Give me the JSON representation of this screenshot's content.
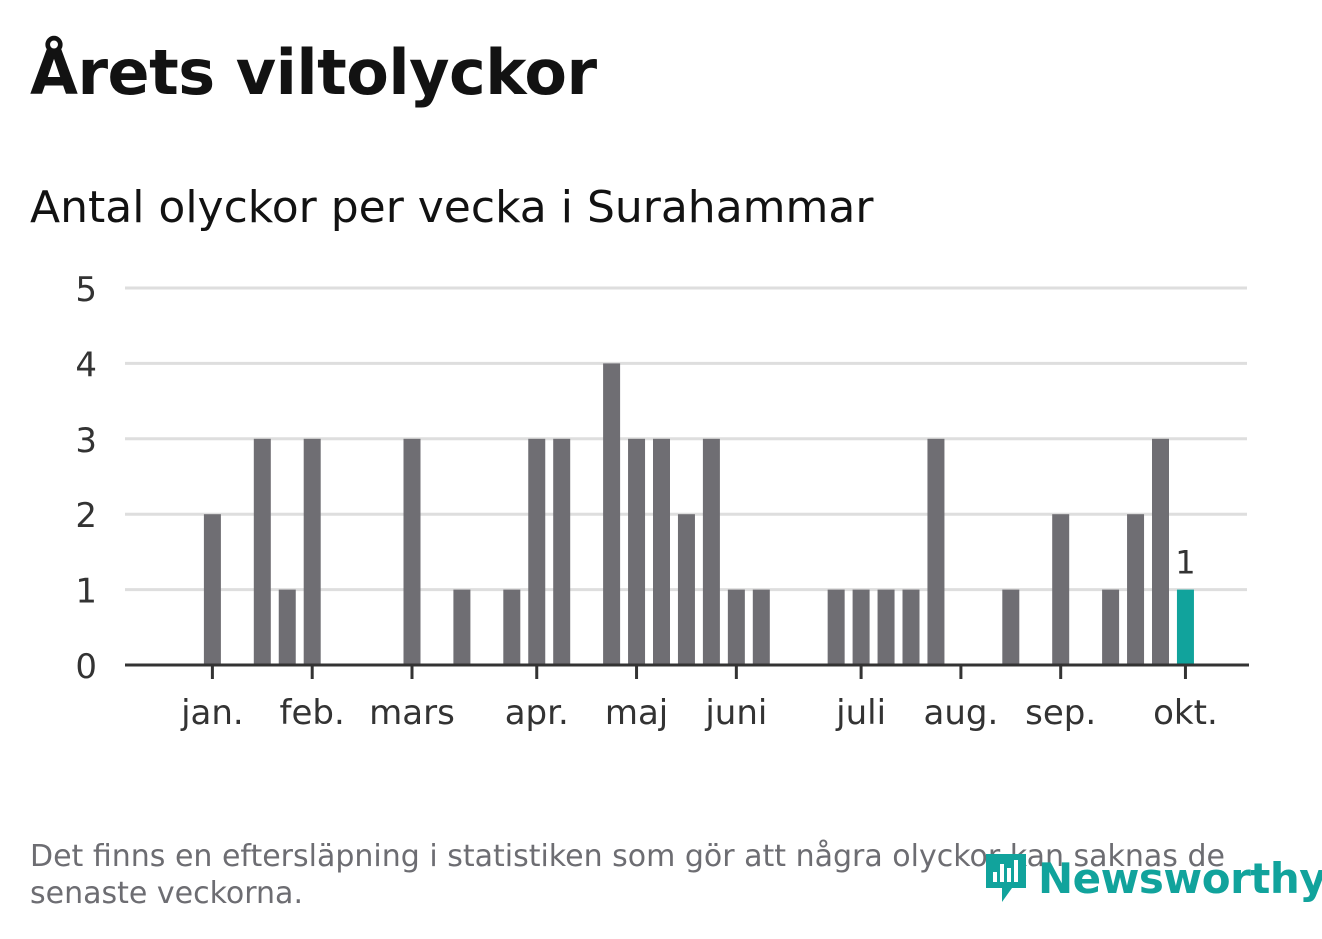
{
  "title": "Årets viltolyckor",
  "subtitle": "Antal olyckor per vecka i Surahammar",
  "footnote": "Det finns en eftersläpning i statistiken som gör att några olyckor kan saknas de senaste veckorna.",
  "brand": "Newsworthy",
  "colors": {
    "bar": "#6f6e73",
    "highlight": "#11a39c",
    "grid": "#dedede",
    "axis": "#333333",
    "text": "#333333"
  },
  "chart_data": {
    "type": "bar",
    "weeks": [
      1,
      2,
      3,
      4,
      5,
      6,
      7,
      8,
      9,
      10,
      11,
      12,
      13,
      14,
      15,
      16,
      17,
      18,
      19,
      20,
      21,
      22,
      23,
      24,
      25,
      26,
      27,
      28,
      29,
      30,
      31,
      32,
      33,
      34,
      35,
      36,
      37,
      38,
      39,
      40,
      41,
      42
    ],
    "values": [
      0,
      0,
      2,
      0,
      3,
      1,
      3,
      0,
      0,
      0,
      3,
      0,
      1,
      0,
      1,
      3,
      3,
      0,
      4,
      3,
      3,
      2,
      3,
      1,
      1,
      0,
      0,
      1,
      1,
      1,
      1,
      3,
      0,
      0,
      1,
      0,
      2,
      0,
      1,
      2,
      3,
      1
    ],
    "highlight_last": true,
    "last_value_label": "1",
    "ylim": [
      0,
      5
    ],
    "yticks": [
      "0",
      "1",
      "2",
      "3",
      "4",
      "5"
    ],
    "month_ticks": [
      {
        "label": "jan.",
        "week": 3
      },
      {
        "label": "feb.",
        "week": 7
      },
      {
        "label": "mars",
        "week": 11
      },
      {
        "label": "apr.",
        "week": 16
      },
      {
        "label": "maj",
        "week": 20
      },
      {
        "label": "juni",
        "week": 24
      },
      {
        "label": "juli",
        "week": 29
      },
      {
        "label": "aug.",
        "week": 33
      },
      {
        "label": "sep.",
        "week": 37
      },
      {
        "label": "okt.",
        "week": 42
      }
    ],
    "grid": true,
    "legend": "none"
  }
}
